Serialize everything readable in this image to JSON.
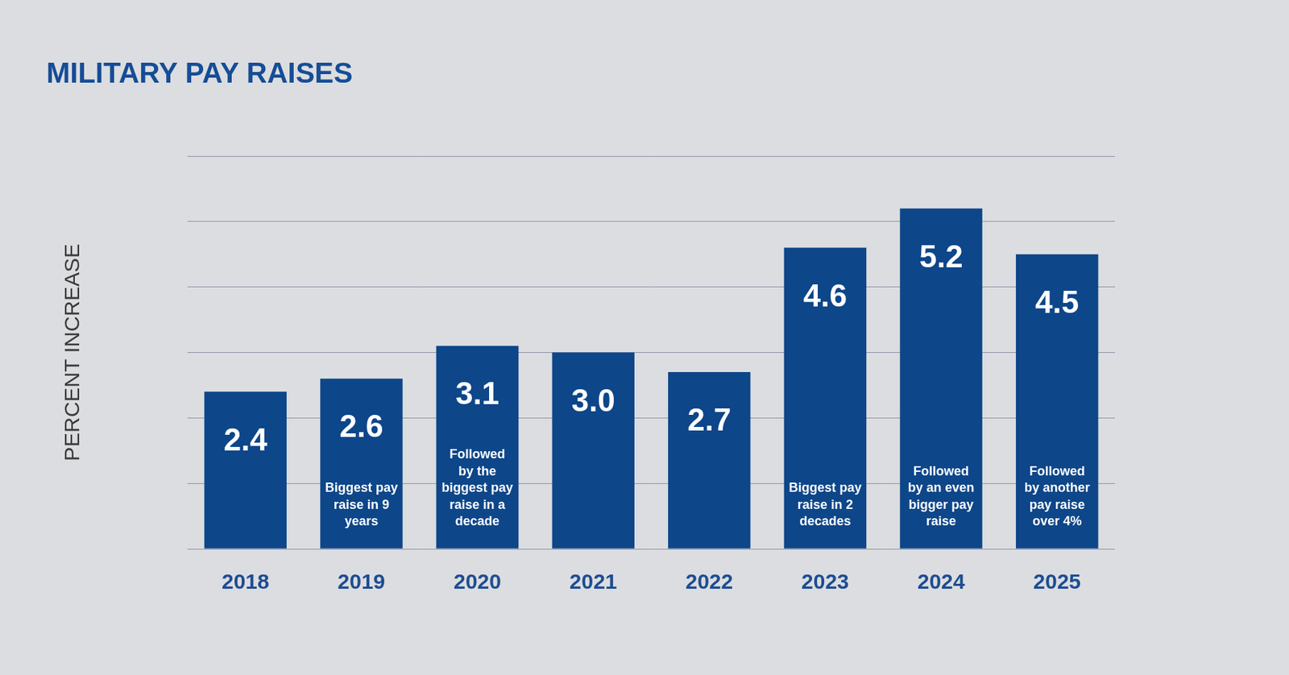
{
  "chart_data": {
    "type": "bar",
    "title": "MILITARY PAY RAISES",
    "y_label": "PERCENT INCREASE",
    "categories": [
      "2018",
      "2019",
      "2020",
      "2021",
      "2022",
      "2023",
      "2024",
      "2025"
    ],
    "values": [
      2.4,
      2.6,
      3.1,
      3.0,
      2.7,
      4.6,
      5.2,
      4.5
    ],
    "value_labels": [
      "2.4",
      "2.6",
      "3.1",
      "3.0",
      "2.7",
      "4.6",
      "5.2",
      "4.5"
    ],
    "annotations": [
      null,
      "Biggest pay raise in 9 years",
      "Followed by the biggest pay raise in a decade",
      null,
      null,
      "Biggest pay raise in 2 decades",
      "Followed by an even bigger pay raise",
      "Followed by another pay raise over 4%"
    ],
    "color": "#0d4689",
    "ylim": [
      0,
      6
    ],
    "yticks": [
      0,
      1,
      2,
      3,
      4,
      5,
      6
    ],
    "grid": true,
    "data_labels": true,
    "tick_labels": "x"
  }
}
